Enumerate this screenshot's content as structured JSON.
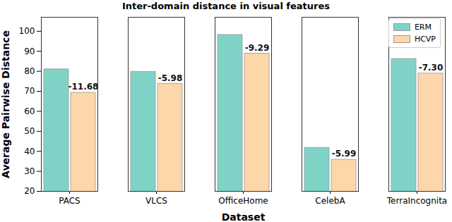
{
  "chart_data": {
    "type": "bar",
    "title": "Inter-domain distance in visual features",
    "x_label": "Dataset",
    "y_label": "Average Pairwise Distance",
    "categories": [
      "PACS",
      "VLCS",
      "OfficeHome",
      "CelebA",
      "TerraIncognita"
    ],
    "series": [
      {
        "name": "ERM",
        "color": "#7fd3c6",
        "values": [
          81.0,
          79.8,
          98.2,
          41.8,
          86.2
        ]
      },
      {
        "name": "HCVP",
        "color": "#fdd6aa",
        "values": [
          69.3,
          73.8,
          88.9,
          35.8,
          78.9
        ]
      }
    ],
    "annotations": [
      {
        "category": "PACS",
        "series": "HCVP",
        "text": "-11.68"
      },
      {
        "category": "VLCS",
        "series": "HCVP",
        "text": "-5.98"
      },
      {
        "category": "OfficeHome",
        "series": "HCVP",
        "text": "-9.29"
      },
      {
        "category": "CelebA",
        "series": "HCVP",
        "text": "-5.99"
      },
      {
        "category": "TerraIncognita",
        "series": "HCVP",
        "text": "-7.30"
      }
    ],
    "ylim": [
      20,
      107
    ],
    "yticks": [
      20,
      30,
      40,
      50,
      60,
      70,
      80,
      90,
      100
    ],
    "grid": false,
    "legend": "upper right"
  }
}
